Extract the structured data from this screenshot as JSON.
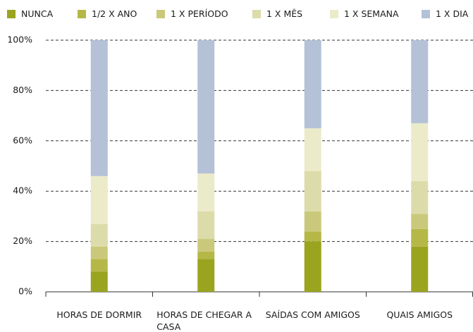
{
  "chart_data": {
    "type": "stacked_bar",
    "categories": [
      "HORAS DE DORMIR",
      "HORAS DE CHEGAR A CASA",
      "SAÍDAS COM AMIGOS",
      "QUAIS AMIGOS"
    ],
    "series": [
      {
        "name": "NUNCA",
        "color": "#9aa41f",
        "values": [
          8,
          13,
          20,
          18
        ]
      },
      {
        "name": "1/2 X ANO",
        "color": "#b5b846",
        "values": [
          5,
          3,
          4,
          7
        ]
      },
      {
        "name": "1 X PERÍODO",
        "color": "#cac97b",
        "values": [
          5,
          5,
          8,
          6
        ]
      },
      {
        "name": "1 X MÊS",
        "color": "#dcdcab",
        "values": [
          9,
          11,
          16,
          13
        ]
      },
      {
        "name": "1 X SEMANA",
        "color": "#ebebca",
        "values": [
          19,
          15,
          17,
          23
        ]
      },
      {
        "name": "1 X DIA",
        "color": "#b4c1d6",
        "values": [
          54,
          53,
          35,
          33
        ]
      }
    ],
    "ylim": [
      0,
      100
    ],
    "yticks": [
      {
        "value": 0,
        "label": "0%"
      },
      {
        "value": 20,
        "label": "20%"
      },
      {
        "value": 40,
        "label": "40%"
      },
      {
        "value": 60,
        "label": "60%"
      },
      {
        "value": 80,
        "label": "80%"
      },
      {
        "value": 100,
        "label": "100%"
      }
    ],
    "grid": true
  }
}
